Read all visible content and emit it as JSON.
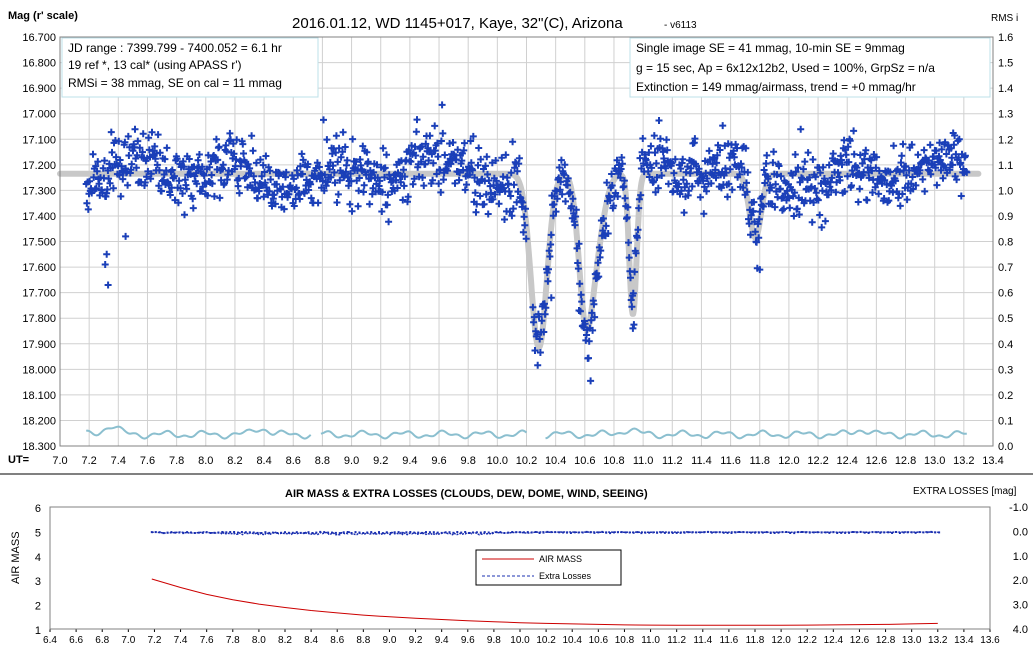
{
  "chart_data": [
    {
      "type": "scatter",
      "title": "2016.01.12,  WD 1145+017,  Kaye,  32\"(C), Arizona",
      "title_suffix": "- v6113",
      "ylabel": "Mag (r' scale)",
      "y2label": "RMS i",
      "xlabel": "UT=",
      "xlim": [
        7.0,
        13.4
      ],
      "ylim": [
        18.3,
        16.7
      ],
      "y2lim": [
        0.0,
        1.6
      ],
      "x_ticks": [
        "7.0",
        "7.2",
        "7.4",
        "7.6",
        "7.8",
        "8.0",
        "8.2",
        "8.4",
        "8.6",
        "8.8",
        "9.0",
        "9.2",
        "9.4",
        "9.6",
        "9.8",
        "10.0",
        "10.2",
        "10.4",
        "10.6",
        "10.8",
        "11.0",
        "11.2",
        "11.4",
        "11.6",
        "11.8",
        "12.0",
        "12.2",
        "12.4",
        "12.6",
        "12.8",
        "13.0",
        "13.2",
        "13.4"
      ],
      "y_ticks": [
        "16.700",
        "16.800",
        "16.900",
        "17.000",
        "17.100",
        "17.200",
        "17.300",
        "17.400",
        "17.500",
        "17.600",
        "17.700",
        "17.800",
        "17.900",
        "18.000",
        "18.100",
        "18.200",
        "18.300"
      ],
      "y2_ticks": [
        "1.6",
        "1.5",
        "1.4",
        "1.3",
        "1.2",
        "1.1",
        "1.0",
        "0.9",
        "0.8",
        "0.7",
        "0.6",
        "0.5",
        "0.4",
        "0.3",
        "0.2",
        "0.1",
        "0.0"
      ],
      "grid": true,
      "notes_left": [
        "JD range  : 7399.799 - 7400.052  = 6.1 hr",
        " 19 ref *, 13 cal* (using APASS r')",
        "RMSi = 38 mmag, SE on cal = 11 mmag"
      ],
      "notes_right": [
        "Single image SE = 41 mmag, 10-min SE = 9mmag",
        "g = 15 sec, Ap = 6x12x12b2, Used = 100%, GrpSz = n/a",
        "Extinction = 149 mmag/airmass, trend = +0 mmag/hr"
      ],
      "baseline_mag": 17.235,
      "start_x": 7.18,
      "end_x": 13.22,
      "n_points": 1300,
      "scatter_sigma": 0.06,
      "dips": [
        {
          "center": 10.285,
          "depth": 0.68,
          "width": 0.055
        },
        {
          "center": 10.6,
          "depth": 0.42,
          "width": 0.045
        },
        {
          "center": 10.665,
          "depth": 0.3,
          "width": 0.06
        },
        {
          "center": 10.93,
          "depth": 0.55,
          "width": 0.025
        },
        {
          "center": 11.77,
          "depth": 0.25,
          "width": 0.04
        }
      ],
      "rms_baseline": 0.045,
      "rms_bumps": [
        {
          "center": 7.35,
          "height": 0.035
        },
        {
          "center": 8.38,
          "height": 0.025
        },
        {
          "center": 10.9,
          "height": 0.02
        },
        {
          "center": 12.5,
          "height": 0.02
        }
      ],
      "rms_gaps": [
        [
          8.72,
          8.78
        ],
        [
          10.2,
          10.32
        ]
      ],
      "outliers": [
        {
          "x": 7.32,
          "y": 17.55
        },
        {
          "x": 7.31,
          "y": 17.59
        },
        {
          "x": 7.33,
          "y": 17.67
        },
        {
          "x": 7.45,
          "y": 17.48
        },
        {
          "x": 10.37,
          "y": 17.72
        },
        {
          "x": 10.56,
          "y": 17.77
        },
        {
          "x": 10.93,
          "y": 17.84
        },
        {
          "x": 11.8,
          "y": 17.61
        },
        {
          "x": 12.25,
          "y": 17.42
        }
      ],
      "colors": {
        "points": "#1a3fb8",
        "model": "#c8c8c8",
        "rms": "#8bbfcf"
      }
    },
    {
      "type": "line",
      "title": "AIR MASS & EXTRA LOSSES (CLOUDS, DEW, DOME, WIND, SEEING)",
      "ylabel": "AIR MASS",
      "y2label": "EXTRA LOSSES [mag]",
      "xlim": [
        6.4,
        13.6
      ],
      "ylim": [
        1,
        6
      ],
      "y2lim": [
        4.0,
        -1.0
      ],
      "x_ticks": [
        "6.4",
        "6.6",
        "6.8",
        "7.0",
        "7.2",
        "7.4",
        "7.6",
        "7.8",
        "8.0",
        "8.2",
        "8.4",
        "8.6",
        "8.8",
        "9.0",
        "9.2",
        "9.4",
        "9.6",
        "9.8",
        "10.0",
        "10.2",
        "10.4",
        "10.6",
        "10.8",
        "11.0",
        "11.2",
        "11.4",
        "11.6",
        "11.8",
        "12.0",
        "12.2",
        "12.4",
        "12.6",
        "12.8",
        "13.0",
        "13.2",
        "13.4",
        "13.6"
      ],
      "y_ticks": [
        "6",
        "5",
        "4",
        "3",
        "2",
        "1"
      ],
      "y2_ticks": [
        "-1.0",
        "0.0",
        "1.0",
        "2.0",
        "3.0",
        "4.0"
      ],
      "series": [
        {
          "name": "AIR MASS",
          "color": "#cc0000",
          "x": [
            7.18,
            7.4,
            7.6,
            7.8,
            8.0,
            8.2,
            8.4,
            8.6,
            8.8,
            9.0,
            9.2,
            9.4,
            9.6,
            9.8,
            10.0,
            10.2,
            10.4,
            10.6,
            10.8,
            11.0,
            11.2,
            11.4,
            11.6,
            11.8,
            12.0,
            12.2,
            12.4,
            12.6,
            12.8,
            13.0,
            13.2
          ],
          "values": [
            3.05,
            2.7,
            2.42,
            2.2,
            2.02,
            1.88,
            1.76,
            1.66,
            1.57,
            1.5,
            1.44,
            1.39,
            1.34,
            1.3,
            1.26,
            1.23,
            1.21,
            1.19,
            1.17,
            1.16,
            1.15,
            1.15,
            1.15,
            1.15,
            1.15,
            1.16,
            1.17,
            1.18,
            1.19,
            1.21,
            1.23
          ]
        },
        {
          "name": "Extra Losses",
          "color": "#1a2fb0",
          "dashed": true,
          "x_start": 7.18,
          "x_end": 13.22,
          "value": 0.02
        }
      ],
      "legend": "center"
    }
  ]
}
